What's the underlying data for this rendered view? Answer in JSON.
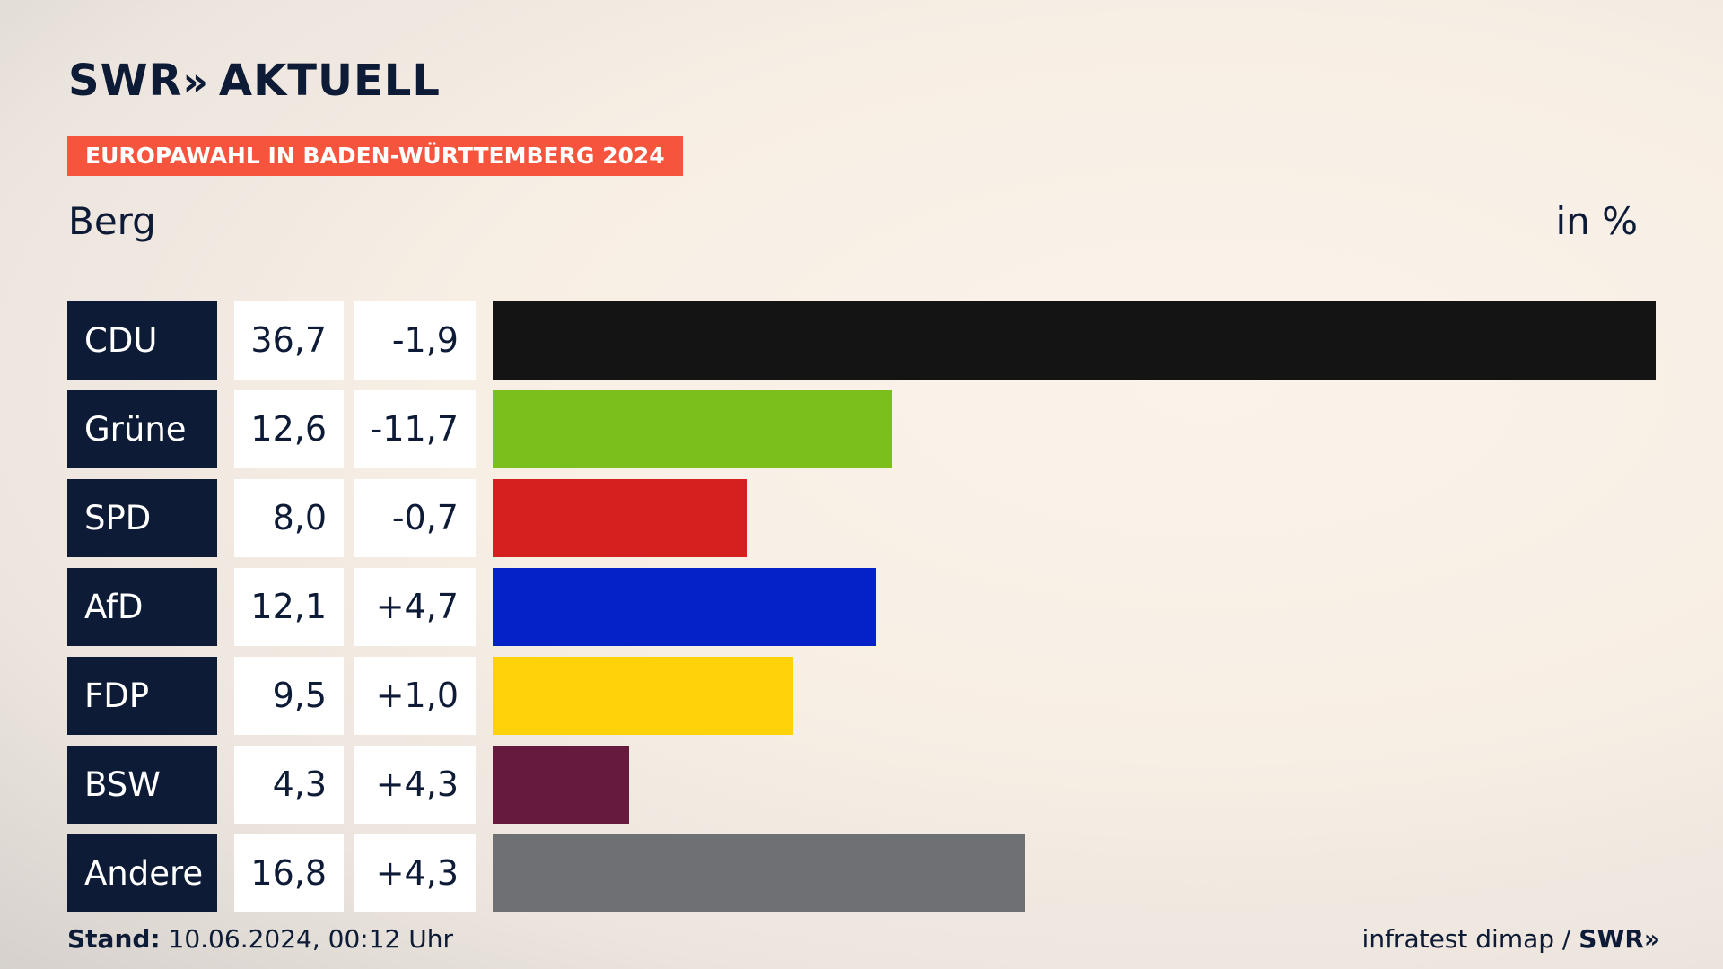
{
  "brand": {
    "logo_main": "SWR",
    "logo_chevrons": "»",
    "logo_suffix": "AKTUELL"
  },
  "banner": "EUROPAWAHL IN BADEN-WÜRTTEMBERG 2024",
  "region": "Berg",
  "unit": "in %",
  "colors": {
    "CDU": "#141414",
    "Grüne": "#7bbf1d",
    "SPD": "#d6201f",
    "AfD": "#0422c7",
    "FDP": "#ffd20a",
    "BSW": "#661a3d",
    "Andere": "#6f7073",
    "banner": "#f7543e",
    "label_bg": "#0d1b36"
  },
  "chart_data": {
    "type": "bar",
    "orientation": "horizontal",
    "title": "EUROPAWAHL IN BADEN-WÜRTTEMBERG 2024",
    "subtitle": "Berg",
    "unit": "in %",
    "categories": [
      "CDU",
      "Grüne",
      "SPD",
      "AfD",
      "FDP",
      "BSW",
      "Andere"
    ],
    "values": [
      36.7,
      12.6,
      8.0,
      12.1,
      9.5,
      4.3,
      16.8
    ],
    "value_labels": [
      "36,7",
      "12,6",
      "8,0",
      "12,1",
      "9,5",
      "4,3",
      "16,8"
    ],
    "diff_labels": [
      "-1,9",
      "-11,7",
      "-0,7",
      "+4,7",
      "+1,0",
      "+4,3",
      "+4,3"
    ],
    "grid": false
  },
  "footer": {
    "stand_label": "Stand:",
    "stand_value": "10.06.2024, 00:12 Uhr",
    "source": "infratest dimap /",
    "source_brand": "SWR",
    "source_chevrons": "»"
  }
}
